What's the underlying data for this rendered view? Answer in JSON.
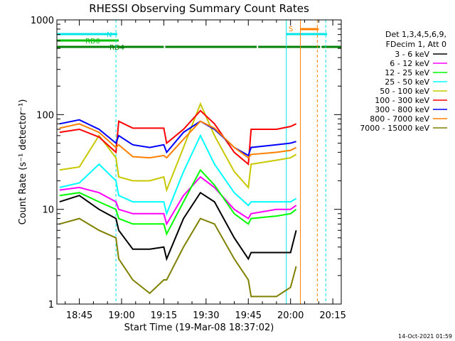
{
  "chart_data": {
    "type": "line",
    "title": "RHESSI Observing Summary Count Rates",
    "xlabel": "Start Time (19-Mar-08 18:37:02)",
    "ylabel": "Count Rate (s⁻¹ detector⁻¹)",
    "y_scale": "log",
    "ylim": [
      1,
      1000
    ],
    "xlim": [
      "18:37:02",
      "20:18:00"
    ],
    "x_ticks": [
      "18:45",
      "19:00",
      "19:15",
      "19:30",
      "19:45",
      "20:00",
      "20:15"
    ],
    "y_ticks": [
      "1",
      "10",
      "100",
      "1000"
    ],
    "timestamp": "14-Oct-2021 01:59",
    "legend": {
      "placement": "right",
      "header": [
        "Det 1,3,4,5,6,9,",
        "FDecim 1, Att 0"
      ]
    },
    "flags": [
      {
        "label": "RD0",
        "color": "#00c000",
        "segments": [
          [
            "18:37:02",
            "18:59:00"
          ]
        ]
      },
      {
        "label": "RD4",
        "color": "#008000",
        "segments": [
          [
            "18:37:02",
            "19:15:00"
          ],
          [
            "19:15:30",
            "19:48:00"
          ],
          [
            "19:48:30",
            "20:10:30"
          ],
          [
            "20:11:00",
            "20:18:00"
          ]
        ]
      },
      {
        "label": "N",
        "color": "#00e5e5",
        "segments": [
          [
            "18:37:02",
            "18:58:30"
          ],
          [
            "19:58:30",
            "20:13:00"
          ]
        ]
      },
      {
        "label": "S",
        "color": "#ff8000",
        "segments": [
          [
            "20:03:30",
            "20:10:00"
          ]
        ]
      }
    ],
    "vlines": [
      {
        "x": "18:58:00",
        "color": "#00e5e5",
        "style": "dashed"
      },
      {
        "x": "19:58:30",
        "color": "#00e5e5",
        "style": "solid"
      },
      {
        "x": "20:03:30",
        "color": "#ff8000",
        "style": "solid"
      },
      {
        "x": "20:09:30",
        "color": "#ff8000",
        "style": "dashed"
      },
      {
        "x": "20:12:30",
        "color": "#00e5e5",
        "style": "dashed"
      }
    ],
    "series": [
      {
        "name": "3 - 6 keV",
        "color": "#000000",
        "points": [
          [
            "18:38",
            12
          ],
          [
            "18:45",
            14
          ],
          [
            "18:52",
            10
          ],
          [
            "18:58",
            8
          ],
          [
            "18:59",
            6
          ],
          [
            "19:04",
            3.8
          ],
          [
            "19:10",
            3.8
          ],
          [
            "19:15",
            4
          ],
          [
            "19:16",
            3
          ],
          [
            "19:22",
            8
          ],
          [
            "19:28",
            15
          ],
          [
            "19:33",
            12
          ],
          [
            "19:40",
            5
          ],
          [
            "19:45",
            3
          ],
          [
            "19:46",
            3.5
          ],
          [
            "19:55",
            3.5
          ],
          [
            "20:00",
            3.5
          ],
          [
            "20:02",
            6
          ]
        ]
      },
      {
        "name": "6 - 12 keV",
        "color": "#ff00ff",
        "points": [
          [
            "18:38",
            16
          ],
          [
            "18:45",
            17
          ],
          [
            "18:52",
            15
          ],
          [
            "18:58",
            12
          ],
          [
            "18:59",
            10
          ],
          [
            "19:04",
            9
          ],
          [
            "19:10",
            9
          ],
          [
            "19:15",
            9
          ],
          [
            "19:16",
            7
          ],
          [
            "19:22",
            14
          ],
          [
            "19:28",
            22
          ],
          [
            "19:33",
            17
          ],
          [
            "19:40",
            10
          ],
          [
            "19:45",
            8
          ],
          [
            "19:46",
            9
          ],
          [
            "19:55",
            10
          ],
          [
            "20:00",
            10
          ],
          [
            "20:02",
            11
          ]
        ]
      },
      {
        "name": "12 - 25 keV",
        "color": "#00ff00",
        "points": [
          [
            "18:38",
            14
          ],
          [
            "18:45",
            15
          ],
          [
            "18:52",
            12
          ],
          [
            "18:58",
            10
          ],
          [
            "18:59",
            8
          ],
          [
            "19:04",
            7
          ],
          [
            "19:10",
            7
          ],
          [
            "19:15",
            7
          ],
          [
            "19:16",
            5.5
          ],
          [
            "19:22",
            12
          ],
          [
            "19:28",
            26
          ],
          [
            "19:33",
            18
          ],
          [
            "19:40",
            9
          ],
          [
            "19:45",
            7
          ],
          [
            "19:46",
            8
          ],
          [
            "19:55",
            8.5
          ],
          [
            "20:00",
            9
          ],
          [
            "20:02",
            10
          ]
        ]
      },
      {
        "name": "25 - 50 keV",
        "color": "#00ffff",
        "points": [
          [
            "18:38",
            17
          ],
          [
            "18:45",
            19
          ],
          [
            "18:52",
            30
          ],
          [
            "18:58",
            20
          ],
          [
            "18:59",
            14
          ],
          [
            "19:04",
            12
          ],
          [
            "19:10",
            12
          ],
          [
            "19:15",
            12
          ],
          [
            "19:16",
            9
          ],
          [
            "19:22",
            25
          ],
          [
            "19:28",
            60
          ],
          [
            "19:33",
            30
          ],
          [
            "19:40",
            15
          ],
          [
            "19:45",
            11
          ],
          [
            "19:46",
            12
          ],
          [
            "19:55",
            12
          ],
          [
            "20:00",
            12
          ],
          [
            "20:02",
            13
          ]
        ]
      },
      {
        "name": "50 - 100 keV",
        "color": "#c8c800",
        "points": [
          [
            "18:38",
            26
          ],
          [
            "18:45",
            28
          ],
          [
            "18:52",
            60
          ],
          [
            "18:58",
            35
          ],
          [
            "18:59",
            22
          ],
          [
            "19:04",
            20
          ],
          [
            "19:10",
            20
          ],
          [
            "19:15",
            22
          ],
          [
            "19:16",
            16
          ],
          [
            "19:22",
            45
          ],
          [
            "19:28",
            130
          ],
          [
            "19:33",
            60
          ],
          [
            "19:40",
            25
          ],
          [
            "19:45",
            17
          ],
          [
            "19:46",
            30
          ],
          [
            "19:55",
            33
          ],
          [
            "20:00",
            35
          ],
          [
            "20:02",
            38
          ]
        ]
      },
      {
        "name": "100 - 300 keV",
        "color": "#ff0000",
        "points": [
          [
            "18:38",
            65
          ],
          [
            "18:45",
            70
          ],
          [
            "18:52",
            58
          ],
          [
            "18:58",
            40
          ],
          [
            "18:59",
            85
          ],
          [
            "19:04",
            72
          ],
          [
            "19:10",
            72
          ],
          [
            "19:15",
            72
          ],
          [
            "19:16",
            50
          ],
          [
            "19:22",
            70
          ],
          [
            "19:28",
            110
          ],
          [
            "19:33",
            80
          ],
          [
            "19:40",
            40
          ],
          [
            "19:45",
            30
          ],
          [
            "19:46",
            70
          ],
          [
            "19:55",
            70
          ],
          [
            "20:00",
            75
          ],
          [
            "20:02",
            80
          ]
        ]
      },
      {
        "name": "300 - 800 keV",
        "color": "#0000ff",
        "points": [
          [
            "18:38",
            80
          ],
          [
            "18:45",
            88
          ],
          [
            "18:52",
            70
          ],
          [
            "18:58",
            50
          ],
          [
            "18:59",
            60
          ],
          [
            "19:04",
            48
          ],
          [
            "19:10",
            45
          ],
          [
            "19:15",
            48
          ],
          [
            "19:16",
            40
          ],
          [
            "19:22",
            65
          ],
          [
            "19:28",
            85
          ],
          [
            "19:33",
            70
          ],
          [
            "19:40",
            45
          ],
          [
            "19:45",
            37
          ],
          [
            "19:46",
            45
          ],
          [
            "19:55",
            48
          ],
          [
            "20:00",
            50
          ],
          [
            "20:02",
            52
          ]
        ]
      },
      {
        "name": "800 - 7000 keV",
        "color": "#ff8000",
        "points": [
          [
            "18:38",
            72
          ],
          [
            "18:45",
            80
          ],
          [
            "18:52",
            65
          ],
          [
            "18:58",
            45
          ],
          [
            "18:59",
            48
          ],
          [
            "19:04",
            36
          ],
          [
            "19:10",
            35
          ],
          [
            "19:15",
            37
          ],
          [
            "19:16",
            35
          ],
          [
            "19:22",
            55
          ],
          [
            "19:28",
            85
          ],
          [
            "19:33",
            72
          ],
          [
            "19:40",
            45
          ],
          [
            "19:45",
            35
          ],
          [
            "19:46",
            38
          ],
          [
            "19:55",
            40
          ],
          [
            "20:00",
            42
          ],
          [
            "20:02",
            45
          ]
        ]
      },
      {
        "name": "7000 - 15000 keV",
        "color": "#808000",
        "points": [
          [
            "18:38",
            7
          ],
          [
            "18:45",
            8
          ],
          [
            "18:52",
            6
          ],
          [
            "18:58",
            5
          ],
          [
            "18:59",
            3
          ],
          [
            "19:04",
            1.8
          ],
          [
            "19:10",
            1.3
          ],
          [
            "19:15",
            1.8
          ],
          [
            "19:16",
            1.8
          ],
          [
            "19:22",
            4
          ],
          [
            "19:28",
            8
          ],
          [
            "19:33",
            7
          ],
          [
            "19:40",
            3
          ],
          [
            "19:45",
            1.8
          ],
          [
            "19:46",
            1.2
          ],
          [
            "19:55",
            1.2
          ],
          [
            "20:00",
            1.5
          ],
          [
            "20:02",
            2.5
          ]
        ]
      }
    ]
  }
}
